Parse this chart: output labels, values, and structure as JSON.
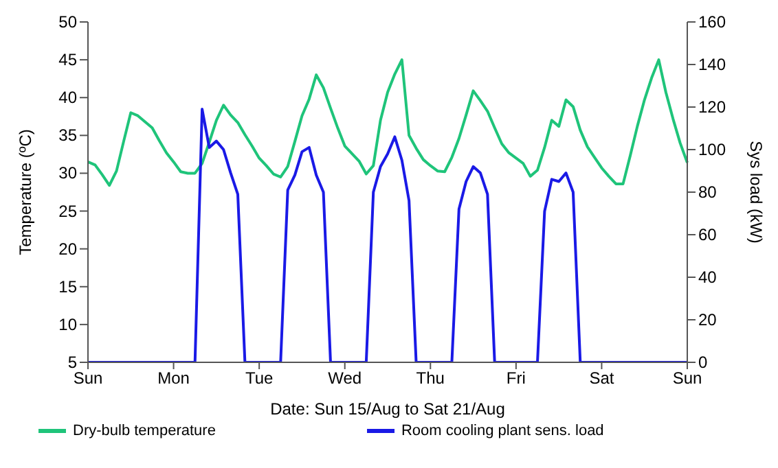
{
  "chart_data": {
    "type": "line",
    "xlabel": "Date: Sun 15/Aug to Sat 21/Aug",
    "ylabel": "Temperature (ºC)",
    "y2label": "Sys load (kW)",
    "categories": [
      "Sun",
      null,
      null,
      null,
      null,
      null,
      null,
      null,
      null,
      null,
      null,
      null,
      "Mon",
      null,
      null,
      null,
      null,
      null,
      null,
      null,
      null,
      null,
      null,
      null,
      "Tue",
      null,
      null,
      null,
      null,
      null,
      null,
      null,
      null,
      null,
      null,
      null,
      "Wed",
      null,
      null,
      null,
      null,
      null,
      null,
      null,
      null,
      null,
      null,
      null,
      "Thu",
      null,
      null,
      null,
      null,
      null,
      null,
      null,
      null,
      null,
      null,
      null,
      "Fri",
      null,
      null,
      null,
      null,
      null,
      null,
      null,
      null,
      null,
      null,
      null,
      "Sat",
      null,
      null,
      null,
      null,
      null,
      null,
      null,
      null,
      null,
      null,
      null,
      "Sun"
    ],
    "ylim": [
      5,
      50
    ],
    "yticks": [
      5,
      10,
      15,
      20,
      25,
      30,
      35,
      40,
      45,
      50
    ],
    "y2lim": [
      0,
      160
    ],
    "y2ticks": [
      0,
      20,
      40,
      60,
      80,
      100,
      120,
      140,
      160
    ],
    "legend": "bottom",
    "marker": "none",
    "line_style": "solid",
    "series": [
      {
        "name": "Dry-bulb temperature",
        "color": "#1fc47a",
        "values": [
          31.5,
          31.1,
          29.8,
          28.4,
          30.3,
          34.2,
          38,
          37.6,
          36.8,
          36,
          34.3,
          32.7,
          31.5,
          30.2,
          30,
          30,
          31.3,
          34.1,
          37,
          39,
          37.7,
          36.7,
          35.1,
          33.6,
          32,
          31,
          29.9,
          29.5,
          30.9,
          34.2,
          37.6,
          39.8,
          43,
          41.3,
          38.6,
          36,
          33.6,
          32.6,
          31.6,
          29.9,
          31,
          37,
          40.7,
          43.1,
          45,
          35,
          33.3,
          31.8,
          31,
          30.3,
          30.2,
          32.1,
          34.6,
          37.7,
          40.9,
          39.6,
          38.2,
          36,
          33.9,
          32.7,
          32,
          31.3,
          29.6,
          30.4,
          33.4,
          37,
          36.2,
          39.7,
          38.8,
          35.7,
          33.5,
          32.1,
          30.7,
          29.6,
          28.6,
          28.6,
          32.3,
          36.2,
          39.7,
          42.6,
          45,
          40.7,
          37.2,
          34,
          31.4
        ]
      },
      {
        "name": "Room cooling plant sens. load",
        "color": "#1a1ae6",
        "axis": "y2",
        "values": [
          0,
          0,
          0,
          0,
          0,
          0,
          0,
          0,
          0,
          0,
          0,
          0,
          0,
          0,
          0,
          0,
          119,
          101,
          104,
          100,
          89,
          79,
          0,
          0,
          0,
          0,
          0,
          0,
          81,
          88,
          99,
          101,
          88,
          80,
          0,
          0,
          0,
          0,
          0,
          0,
          80,
          92,
          98,
          106,
          95,
          76,
          0,
          0,
          0,
          0,
          0,
          0,
          72,
          85,
          92,
          89,
          79,
          0,
          0,
          0,
          0,
          0,
          0,
          0,
          71,
          86,
          85,
          89,
          80,
          0,
          0,
          0,
          0,
          0,
          0,
          0,
          0,
          0,
          0,
          0,
          0,
          0,
          0,
          0,
          0
        ]
      }
    ]
  }
}
